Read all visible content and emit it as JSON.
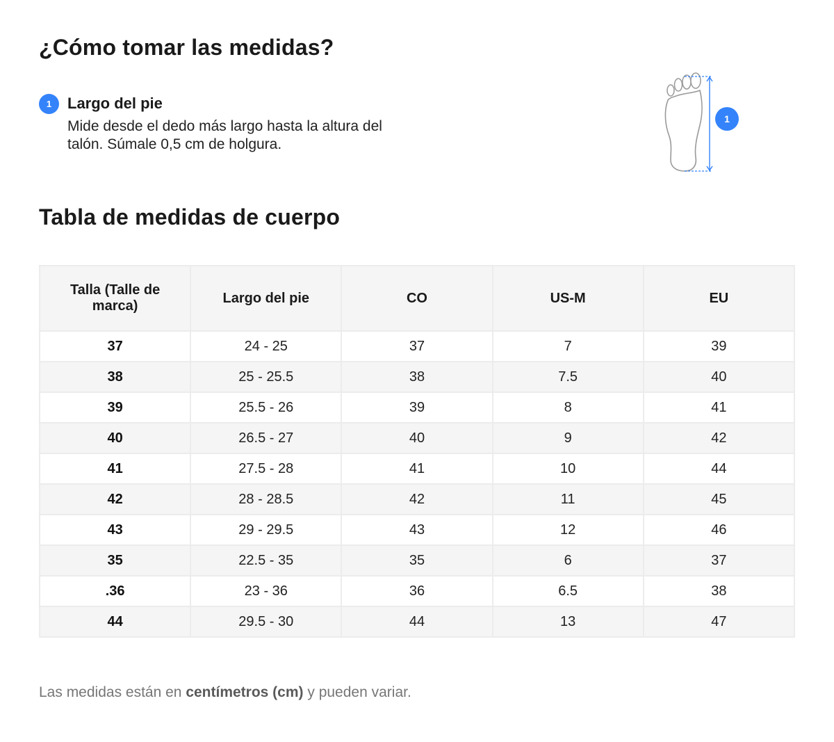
{
  "how_to": {
    "title": "¿Cómo tomar las medidas?",
    "step": {
      "number": "1",
      "title": "Largo del pie",
      "description": "Mide desde el dedo más largo hasta la altura del talón. Súmale 0,5 cm de holgura."
    },
    "illustration": {
      "icon": "foot-outline-icon",
      "marker": "1",
      "accent_color": "#3483fa"
    }
  },
  "table": {
    "title": "Tabla de medidas de cuerpo",
    "headers": [
      "Talla (Talle de marca)",
      "Largo del pie",
      "CO",
      "US-M",
      "EU"
    ],
    "rows": [
      [
        "37",
        "24 - 25",
        "37",
        "7",
        "39"
      ],
      [
        "38",
        "25 - 25.5",
        "38",
        "7.5",
        "40"
      ],
      [
        "39",
        "25.5 - 26",
        "39",
        "8",
        "41"
      ],
      [
        "40",
        "26.5 - 27",
        "40",
        "9",
        "42"
      ],
      [
        "41",
        "27.5 - 28",
        "41",
        "10",
        "44"
      ],
      [
        "42",
        "28 - 28.5",
        "42",
        "11",
        "45"
      ],
      [
        "43",
        "29 - 29.5",
        "43",
        "12",
        "46"
      ],
      [
        "35",
        "22.5 - 35",
        "35",
        "6",
        "37"
      ],
      [
        ".36",
        "23 - 36",
        "36",
        "6.5",
        "38"
      ],
      [
        "44",
        "29.5 - 30",
        "44",
        "13",
        "47"
      ]
    ]
  },
  "footnote": {
    "prefix": "Las medidas están en ",
    "emphasis": "centímetros (cm)",
    "suffix": " y pueden variar."
  }
}
